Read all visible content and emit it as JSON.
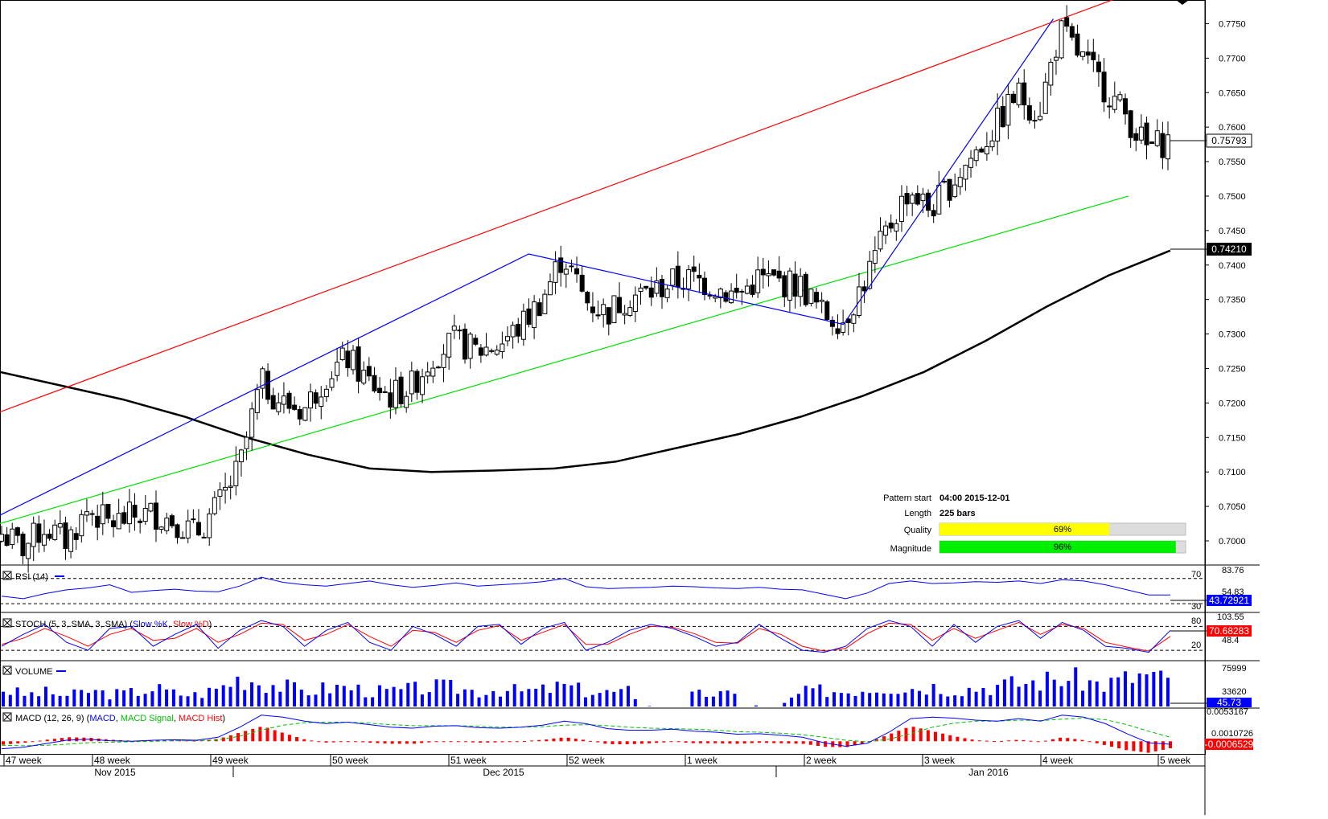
{
  "chart_data": {
    "type": "candlestick",
    "instrument_panel": {
      "y_ticks": [
        "0.7750",
        "0.7700",
        "0.7650",
        "0.7600",
        "0.7550",
        "0.7500",
        "0.7450",
        "0.7400",
        "0.7350",
        "0.7300",
        "0.7250",
        "0.7200",
        "0.7150",
        "0.7100",
        "0.7050",
        "0.7000"
      ],
      "ylim": [
        0.6965,
        0.7782
      ],
      "last_price_label": "0.75793",
      "last_price": 0.75793,
      "ma_label": "0.74210",
      "ma_value": 0.7421,
      "channel_upper": [
        {
          "x": "2015-11-13",
          "y": 0.7165
        },
        {
          "x": "2016-01-29",
          "y": 0.7785
        }
      ],
      "channel_lower": [
        {
          "x": "2015-11-13",
          "y": 0.7008
        },
        {
          "x": "2016-01-30",
          "y": 0.75
        }
      ],
      "zigzag": [
        {
          "x": "2015-11-13",
          "y": 0.7008
        },
        {
          "x": "2015-12-21",
          "y": 0.7416
        },
        {
          "x": "2016-01-11",
          "y": 0.7314
        },
        {
          "x": "2016-01-25",
          "y": 0.7757
        }
      ],
      "moving_average": [
        0.7245,
        0.7225,
        0.7205,
        0.718,
        0.715,
        0.7125,
        0.7105,
        0.71,
        0.7102,
        0.7105,
        0.7115,
        0.7135,
        0.7155,
        0.718,
        0.721,
        0.7245,
        0.729,
        0.734,
        0.7385,
        0.7421
      ],
      "closes": [
        0.701,
        0.699,
        0.702,
        0.7,
        0.7045,
        0.7025,
        0.7035,
        0.704,
        0.703,
        0.701,
        0.705,
        0.7105,
        0.723,
        0.72,
        0.719,
        0.724,
        0.7265,
        0.723,
        0.721,
        0.7225,
        0.727,
        0.729,
        0.7275,
        0.7285,
        0.731,
        0.735,
        0.7415,
        0.735,
        0.733,
        0.7355,
        0.736,
        0.7375,
        0.738,
        0.737,
        0.7355,
        0.738,
        0.7375,
        0.737,
        0.733,
        0.732,
        0.738,
        0.745,
        0.751,
        0.748,
        0.752,
        0.756,
        0.76,
        0.765,
        0.762,
        0.774,
        0.77,
        0.766,
        0.762,
        0.757,
        0.758
      ],
      "pattern_info": {
        "pattern_start_label": "Pattern start",
        "pattern_start_value": "04:00 2015-12-01",
        "length_label": "Length",
        "length_value": "225 bars",
        "quality_label": "Quality",
        "quality_value": "69%",
        "quality_fraction": 0.69,
        "magnitude_label": "Magnitude",
        "magnitude_value": "96%",
        "magnitude_fraction": 0.96
      }
    },
    "rsi": {
      "title": "RSI (14)",
      "y_ticks": [
        "83.76",
        "54.83"
      ],
      "levels": [
        "70",
        "30"
      ],
      "current_label": "43.72921",
      "values": [
        42,
        38,
        46,
        52,
        55,
        60,
        48,
        51,
        53,
        50,
        49,
        58,
        72,
        64,
        60,
        58,
        62,
        66,
        60,
        56,
        59,
        63,
        58,
        60,
        62,
        65,
        70,
        57,
        54,
        55,
        56,
        58,
        57,
        55,
        54,
        56,
        53,
        52,
        45,
        38,
        47,
        62,
        66,
        62,
        63,
        65,
        64,
        66,
        62,
        68,
        66,
        60,
        52,
        44,
        44
      ]
    },
    "stoch": {
      "title": "STOCH (5, 3, SMA, 3, SMA) (",
      "slow_k_label": "Slow %K",
      "separator": ", ",
      "slow_d_label": "Slow %D",
      "closing": ")",
      "y_ticks": [
        "103.55",
        "48.4"
      ],
      "levels": [
        "80",
        "20"
      ],
      "current_label": "70.68283",
      "slow_k": [
        30,
        60,
        85,
        40,
        20,
        75,
        80,
        30,
        60,
        85,
        25,
        70,
        95,
        80,
        30,
        70,
        90,
        40,
        20,
        80,
        60,
        30,
        80,
        85,
        35,
        75,
        90,
        20,
        40,
        70,
        85,
        75,
        55,
        30,
        40,
        85,
        50,
        20,
        15,
        30,
        75,
        95,
        80,
        30,
        85,
        40,
        80,
        95,
        50,
        90,
        70,
        30,
        25,
        15,
        70
      ],
      "slow_d": [
        35,
        50,
        75,
        55,
        30,
        60,
        75,
        45,
        50,
        75,
        40,
        60,
        88,
        85,
        45,
        60,
        85,
        55,
        30,
        70,
        65,
        40,
        70,
        82,
        45,
        65,
        85,
        35,
        35,
        60,
        80,
        78,
        62,
        40,
        38,
        75,
        60,
        30,
        18,
        25,
        62,
        88,
        85,
        45,
        75,
        50,
        70,
        90,
        60,
        85,
        75,
        40,
        28,
        18,
        55
      ]
    },
    "volume": {
      "title": "VOLUME",
      "y_ticks": [
        "75999",
        "33620"
      ],
      "current_label": "45.73",
      "values": [
        31,
        21,
        25,
        19,
        28,
        22,
        25,
        33,
        23,
        21,
        33,
        53,
        44,
        36,
        27,
        33,
        35,
        27,
        27,
        31,
        35,
        33,
        27,
        31,
        27,
        29,
        37,
        27,
        25,
        27,
        0,
        0,
        21,
        23,
        19,
        0,
        0,
        25,
        29,
        27,
        33,
        37,
        33,
        37,
        31,
        33,
        37,
        41,
        45,
        51,
        47,
        39,
        49,
        57,
        45
      ]
    },
    "macd": {
      "title": "MACD (12, 26, 9) (",
      "macd_label": "MACD",
      "signal_label": "MACD Signal",
      "hist_label": "MACD Hist",
      "separator": ", ",
      "closing": ")",
      "y_ticks": [
        "0.0053167",
        "0.0010726"
      ],
      "current_label": "-0.0006529",
      "macd": [
        -0.0015,
        -0.0012,
        -0.0005,
        0.0002,
        0.0004,
        0.0001,
        0.0,
        0.0002,
        0.0003,
        0.0002,
        0.0008,
        0.0028,
        0.0052,
        0.0048,
        0.004,
        0.0035,
        0.0038,
        0.0033,
        0.0028,
        0.0026,
        0.003,
        0.0031,
        0.0027,
        0.0026,
        0.0028,
        0.0032,
        0.004,
        0.0035,
        0.0025,
        0.0022,
        0.0022,
        0.0024,
        0.002,
        0.0018,
        0.0014,
        0.0015,
        0.0012,
        0.0008,
        -0.0003,
        -0.001,
        -0.0004,
        0.0018,
        0.0045,
        0.0048,
        0.0046,
        0.0042,
        0.004,
        0.0045,
        0.004,
        0.0052,
        0.0048,
        0.0035,
        0.0015,
        -0.0003,
        -0.0006
      ],
      "signal": [
        -0.0008,
        -0.0009,
        -0.0008,
        -0.0006,
        -0.0003,
        -0.0002,
        -0.0001,
        0.0,
        0.0001,
        0.0001,
        0.0003,
        0.001,
        0.0022,
        0.0032,
        0.0037,
        0.0038,
        0.0038,
        0.0036,
        0.0033,
        0.0031,
        0.0031,
        0.0031,
        0.003,
        0.0028,
        0.0028,
        0.0029,
        0.0032,
        0.0033,
        0.0031,
        0.0028,
        0.0026,
        0.0025,
        0.0024,
        0.0022,
        0.0019,
        0.0018,
        0.0016,
        0.0013,
        0.0008,
        0.0002,
        -0.0001,
        0.0004,
        0.0015,
        0.0028,
        0.0036,
        0.004,
        0.004,
        0.0042,
        0.0041,
        0.0044,
        0.0046,
        0.0043,
        0.0033,
        0.002,
        0.0008
      ]
    },
    "x_axis": {
      "week_labels": [
        "47 week",
        "48 week",
        "49 week",
        "50 week",
        "51 week",
        "52 week",
        "1 week",
        "2 week",
        "3 week",
        "4 week",
        "5 week"
      ],
      "month_labels": [
        "Nov 2015",
        "Dec 2015",
        "Jan 2016"
      ]
    }
  },
  "colors": {
    "bull_candle": "#ffffff",
    "bear_candle": "#000000",
    "channel_upper": "#ff0000",
    "channel_lower": "#00e000",
    "zigzag": "#0000ff",
    "moving_average": "#000000",
    "rsi_line": "#0000ff",
    "stoch_k": "#0000ff",
    "stoch_d": "#ff0000",
    "volume_bars": "#0000ff",
    "macd_line": "#0000ff",
    "macd_signal": "#00c000",
    "macd_hist": "#ff0000",
    "quality_bar": "#ffff00",
    "magnitude_bar": "#00ee00",
    "rsi_current_bg": "#0000ff",
    "stoch_current_bg": "#ff0000",
    "volume_current_bg": "#0000ff",
    "macd_current_bg": "#ff0000"
  },
  "icons": {
    "panel_toggle": "close-box-icon",
    "scroll_marker": "down-triangle-icon"
  }
}
